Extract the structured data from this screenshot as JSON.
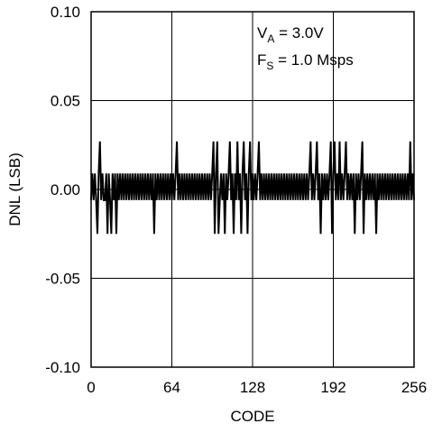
{
  "chart_data": {
    "type": "line",
    "xlabel": "CODE",
    "ylabel": "DNL (LSB)",
    "xlim": [
      0,
      256
    ],
    "ylim": [
      -0.1,
      0.1
    ],
    "x_ticks": [
      0,
      64,
      128,
      192,
      256
    ],
    "x_tick_labels": [
      "0",
      "64",
      "128",
      "192",
      "256"
    ],
    "y_ticks": [
      0.1,
      0.05,
      0.0,
      -0.05,
      -0.1
    ],
    "y_tick_labels": [
      "0.10",
      "0.05",
      "0.00",
      "-0.05",
      "-0.10"
    ],
    "grid": true,
    "annotations": [
      {
        "main": "V",
        "sub": "A",
        "rest": " = 3.0V"
      },
      {
        "main": "F",
        "sub": "S",
        "rest": " = 1.0 Msps"
      }
    ],
    "series": [
      {
        "values": [
          -0.006,
          0.009,
          -0.006,
          0.009,
          -0.006,
          -0.025,
          0.009,
          0.027,
          -0.006,
          0.009,
          -0.006,
          -0.006,
          0.009,
          -0.025,
          0.009,
          -0.006,
          -0.025,
          0.009,
          -0.006,
          0.009,
          -0.025,
          0.009,
          -0.006,
          0.009,
          -0.006,
          0.009,
          -0.006,
          0.009,
          -0.006,
          0.009,
          -0.006,
          0.009,
          -0.006,
          0.009,
          -0.006,
          0.009,
          -0.006,
          0.009,
          -0.006,
          0.009,
          -0.006,
          0.009,
          -0.006,
          0.009,
          -0.006,
          0.009,
          -0.006,
          0.009,
          -0.006,
          0.009,
          -0.025,
          0.009,
          -0.006,
          0.009,
          -0.006,
          0.009,
          -0.006,
          0.009,
          -0.006,
          0.009,
          -0.006,
          0.009,
          -0.006,
          0.009,
          -0.006,
          0.009,
          -0.006,
          0.009,
          0.027,
          -0.006,
          0.009,
          -0.006,
          0.009,
          -0.006,
          0.009,
          -0.006,
          0.009,
          -0.006,
          0.009,
          -0.006,
          0.009,
          -0.006,
          0.009,
          -0.006,
          0.009,
          -0.006,
          0.009,
          -0.006,
          0.009,
          -0.006,
          0.009,
          -0.006,
          0.009,
          -0.006,
          0.009,
          -0.006,
          0.009,
          0.027,
          -0.025,
          0.009,
          0.027,
          -0.025,
          -0.006,
          0.009,
          -0.006,
          0.009,
          -0.025,
          0.009,
          -0.006,
          0.009,
          0.027,
          -0.006,
          0.009,
          -0.025,
          0.009,
          -0.006,
          0.027,
          -0.006,
          0.009,
          -0.025,
          0.009,
          0.027,
          -0.006,
          0.009,
          -0.025,
          0.009,
          0.027,
          -0.006,
          0.009,
          -0.006,
          0.009,
          -0.006,
          0.009,
          0.027,
          -0.006,
          0.009,
          -0.006,
          0.009,
          -0.006,
          0.009,
          -0.006,
          0.009,
          -0.006,
          0.009,
          -0.006,
          0.009,
          -0.006,
          0.009,
          -0.006,
          0.009,
          -0.006,
          0.009,
          -0.006,
          0.009,
          -0.006,
          0.009,
          -0.006,
          0.009,
          -0.006,
          0.009,
          -0.006,
          0.009,
          -0.006,
          0.009,
          -0.006,
          0.009,
          -0.006,
          0.009,
          -0.006,
          0.009,
          -0.006,
          0.009,
          -0.006,
          0.009,
          0.027,
          -0.006,
          0.009,
          -0.006,
          0.009,
          0.027,
          -0.006,
          0.009,
          -0.025,
          0.009,
          -0.006,
          0.009,
          -0.006,
          0.009,
          -0.006,
          0.009,
          0.027,
          -0.025,
          0.009,
          0.027,
          -0.006,
          0.009,
          -0.006,
          0.027,
          -0.006,
          0.009,
          -0.006,
          0.009,
          0.027,
          -0.006,
          0.009,
          -0.006,
          0.009,
          -0.006,
          0.009,
          -0.025,
          0.009,
          -0.006,
          0.009,
          -0.006,
          0.009,
          0.027,
          -0.025,
          0.009,
          -0.006,
          0.009,
          -0.006,
          0.009,
          -0.006,
          0.009,
          -0.006,
          0.009,
          -0.025,
          0.009,
          -0.006,
          0.009,
          -0.006,
          0.009,
          -0.006,
          0.009,
          -0.006,
          0.009,
          -0.006,
          0.009,
          -0.006,
          0.009,
          -0.006,
          0.009,
          -0.006,
          0.009,
          -0.006,
          0.009,
          -0.006,
          0.009,
          -0.006,
          0.009,
          -0.006,
          0.009,
          -0.006,
          0.027,
          -0.006,
          0.009,
          -0.006
        ]
      }
    ]
  }
}
